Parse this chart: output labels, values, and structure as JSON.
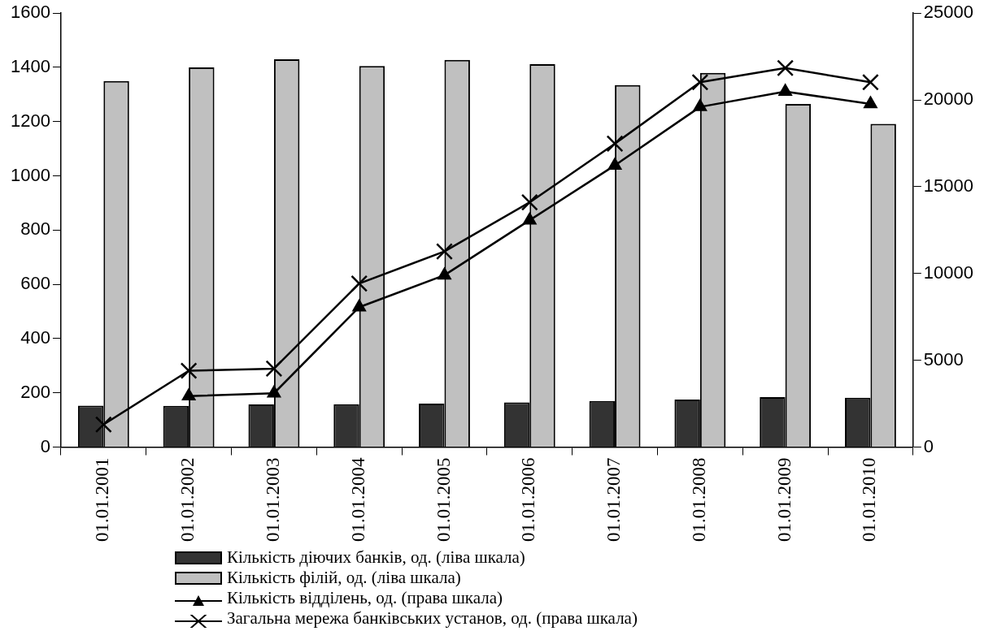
{
  "chart_data": {
    "type": "bar",
    "categories": [
      "01.01.2001",
      "01.01.2002",
      "01.01.2003",
      "01.01.2004",
      "01.01.2005",
      "01.01.2006",
      "01.01.2007",
      "01.01.2008",
      "01.01.2009",
      "01.01.2010"
    ],
    "series": [
      {
        "name": "Кількість діючих банків, од. (ліва шкала)",
        "color": "#333333",
        "values": [
          153,
          152,
          157,
          158,
          160,
          165,
          170,
          175,
          184,
          182
        ]
      },
      {
        "name": "Кількість філій, од. (ліва шкала)",
        "color": "#c0c0c0",
        "values": [
          1350,
          1400,
          1430,
          1405,
          1428,
          1412,
          1335,
          1380,
          1265,
          1192
        ]
      },
      {
        "name": "Кількість відділень, од. (права шкала)",
        "type": "line",
        "axis": "y2",
        "marker": "triangle",
        "color": "#000000",
        "values": [
          null,
          2940,
          3100,
          8060,
          9900,
          13070,
          16230,
          19600,
          20480,
          19770
        ]
      },
      {
        "name": "Загальна мережа банківських установ, од. (права шкала)",
        "type": "line",
        "axis": "y2",
        "marker": "cross",
        "color": "#000000",
        "values": [
          1300,
          4400,
          4520,
          9420,
          11270,
          14100,
          17480,
          21020,
          21840,
          21020
        ]
      }
    ],
    "ylim": [
      0,
      1600
    ],
    "yticks": [
      0,
      200,
      400,
      600,
      800,
      1000,
      1200,
      1400,
      1600
    ],
    "y2lim": [
      0,
      25000
    ],
    "y2ticks": [
      0,
      5000,
      10000,
      15000,
      20000,
      25000
    ],
    "grid": false,
    "legend": "bottom",
    "line_style": "solid"
  }
}
